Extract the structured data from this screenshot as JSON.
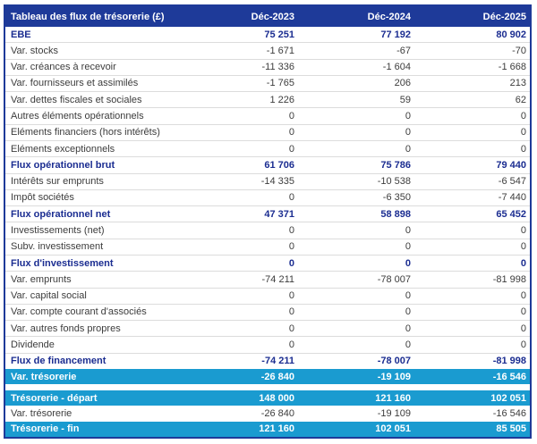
{
  "chart_data": {
    "type": "table",
    "title": "Tableau des flux de trésorerie (£)",
    "columns": [
      "Déc-2023",
      "Déc-2024",
      "Déc-2025"
    ],
    "rows": [
      {
        "label": "EBE",
        "values": [
          "75 251",
          "77 192",
          "80 902"
        ],
        "style": "bold"
      },
      {
        "label": "Var. stocks",
        "values": [
          "-1 671",
          "-67",
          "-70"
        ],
        "style": "normal"
      },
      {
        "label": "Var. créances à recevoir",
        "values": [
          "-11 336",
          "-1 604",
          "-1 668"
        ],
        "style": "normal"
      },
      {
        "label": "Var. fournisseurs et assimilés",
        "values": [
          "-1 765",
          "206",
          "213"
        ],
        "style": "normal"
      },
      {
        "label": "Var. dettes fiscales et sociales",
        "values": [
          "1 226",
          "59",
          "62"
        ],
        "style": "normal"
      },
      {
        "label": "Autres éléments opérationnels",
        "values": [
          "0",
          "0",
          "0"
        ],
        "style": "normal"
      },
      {
        "label": "Eléments financiers (hors intérêts)",
        "values": [
          "0",
          "0",
          "0"
        ],
        "style": "normal"
      },
      {
        "label": "Eléments exceptionnels",
        "values": [
          "0",
          "0",
          "0"
        ],
        "style": "normal"
      },
      {
        "label": "Flux opérationnel brut",
        "values": [
          "61 706",
          "75 786",
          "79 440"
        ],
        "style": "bold"
      },
      {
        "label": "Intérêts sur emprunts",
        "values": [
          "-14 335",
          "-10 538",
          "-6 547"
        ],
        "style": "normal"
      },
      {
        "label": "Impôt sociétés",
        "values": [
          "0",
          "-6 350",
          "-7 440"
        ],
        "style": "normal"
      },
      {
        "label": "Flux opérationnel net",
        "values": [
          "47 371",
          "58 898",
          "65 452"
        ],
        "style": "bold"
      },
      {
        "label": "Investissements (net)",
        "values": [
          "0",
          "0",
          "0"
        ],
        "style": "normal"
      },
      {
        "label": "Subv. investissement",
        "values": [
          "0",
          "0",
          "0"
        ],
        "style": "normal"
      },
      {
        "label": "Flux d'investissement",
        "values": [
          "0",
          "0",
          "0"
        ],
        "style": "bold"
      },
      {
        "label": "Var. emprunts",
        "values": [
          "-74 211",
          "-78 007",
          "-81 998"
        ],
        "style": "normal"
      },
      {
        "label": "Var. capital social",
        "values": [
          "0",
          "0",
          "0"
        ],
        "style": "normal"
      },
      {
        "label": "Var. compte courant d'associés",
        "values": [
          "0",
          "0",
          "0"
        ],
        "style": "normal"
      },
      {
        "label": "Var. autres fonds propres",
        "values": [
          "0",
          "0",
          "0"
        ],
        "style": "normal"
      },
      {
        "label": "Dividende",
        "values": [
          "0",
          "0",
          "0"
        ],
        "style": "normal"
      },
      {
        "label": "Flux de financement",
        "values": [
          "-74 211",
          "-78 007",
          "-81 998"
        ],
        "style": "bold"
      },
      {
        "label": "Var. trésorerie",
        "values": [
          "-26 840",
          "-19 109",
          "-16 546"
        ],
        "style": "highlight"
      },
      {
        "style": "spacer"
      },
      {
        "label": "Trésorerie - départ",
        "values": [
          "148 000",
          "121 160",
          "102 051"
        ],
        "style": "highlight"
      },
      {
        "label": "Var. trésorerie",
        "values": [
          "-26 840",
          "-19 109",
          "-16 546"
        ],
        "style": "normal"
      },
      {
        "label": "Trésorerie - fin",
        "values": [
          "121 160",
          "102 051",
          "85 505"
        ],
        "style": "highlight"
      }
    ],
    "colors": {
      "header_bg": "#1e3a99",
      "border": "#1e3a99",
      "bold_text": "#1b2d91",
      "highlight_bg": "#1a9bd0",
      "separator": "#dcdcdc",
      "text": "#3c3c3c"
    }
  }
}
